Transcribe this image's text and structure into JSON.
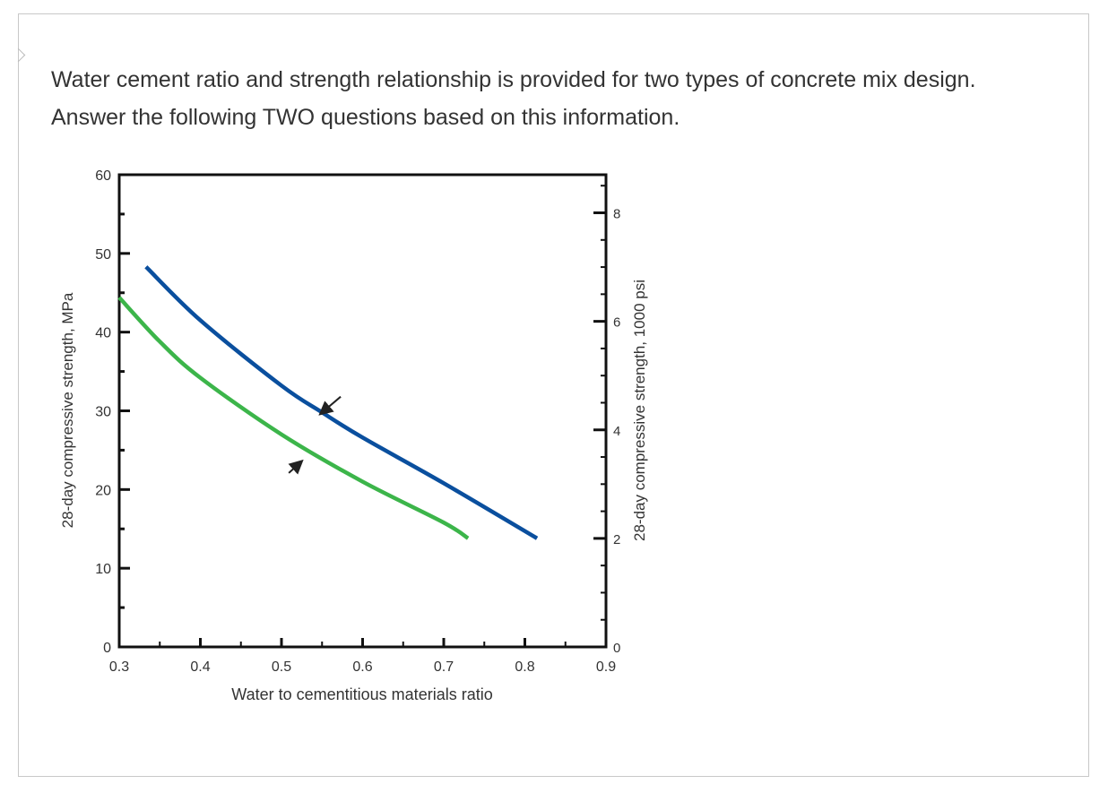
{
  "question": {
    "text": "Water cement ratio and strength relationship is provided for two types of concrete mix design. Answer the following TWO questions based on this information."
  },
  "chart_data": {
    "type": "line",
    "title": "",
    "xlabel": "Water to cementitious materials ratio",
    "ylabel": "28-day compressive strength, MPa",
    "y2label": "28-day compressive strength, 1000 psi",
    "xlim": [
      0.3,
      0.9
    ],
    "ylim": [
      0,
      60
    ],
    "y2lim_ksi": [
      0,
      8.702
    ],
    "xticks": [
      "0.3",
      "0.4",
      "0.5",
      "0.6",
      "0.7",
      "0.8",
      "0.9"
    ],
    "yticks": [
      "0",
      "10",
      "20",
      "30",
      "40",
      "50",
      "60"
    ],
    "y2ticks": [
      "0",
      "2",
      "4",
      "6",
      "8"
    ],
    "grid": false,
    "series": [
      {
        "color": "#0a4f9e",
        "x": [
          0.333,
          0.4,
          0.5,
          0.55,
          0.6,
          0.7,
          0.815
        ],
        "y": [
          48.3,
          41.5,
          33.2,
          29.8,
          26.6,
          20.8,
          13.8
        ]
      },
      {
        "color": "#3cb54a",
        "x": [
          0.3,
          0.35,
          0.4,
          0.5,
          0.6,
          0.7,
          0.73
        ],
        "y": [
          44.4,
          38.8,
          34.2,
          27.0,
          21.0,
          15.8,
          13.8
        ]
      }
    ],
    "annotations": [
      {
        "type": "arrow",
        "from": [
          0.573,
          31.8
        ],
        "to": [
          0.549,
          29.7
        ]
      },
      {
        "type": "arrow",
        "from": [
          0.509,
          22.1
        ],
        "to": [
          0.524,
          23.5
        ]
      }
    ]
  }
}
